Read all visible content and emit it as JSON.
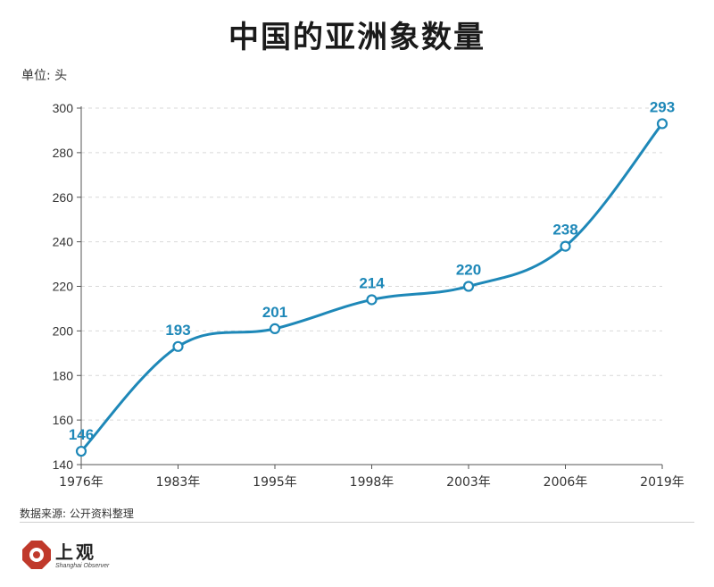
{
  "page": {
    "title": "中国的亚洲象数量",
    "unit_label": "单位: 头",
    "source": "数据来源: 公开资料整理",
    "brand": {
      "name": "上观",
      "subtitle": "Shanghai Observer"
    }
  },
  "chart_data": {
    "type": "line",
    "title": "中国的亚洲象数量",
    "ylabel": "单位: 头",
    "xlabel": "",
    "categories": [
      "1976年",
      "1983年",
      "1995年",
      "1998年",
      "2003年",
      "2006年",
      "2019年"
    ],
    "values": [
      146,
      193,
      201,
      214,
      220,
      238,
      293
    ],
    "data_labels": [
      "146",
      "193",
      "201",
      "214",
      "220",
      "238",
      "293"
    ],
    "y_ticks": [
      "140",
      "160",
      "180",
      "200",
      "220",
      "240",
      "260",
      "280",
      "300"
    ],
    "ylim": [
      140,
      300
    ],
    "grid": true,
    "smooth": true,
    "line_color": "#1e88b8",
    "label_color": "#1e88b8",
    "grid_color": "#d9d9d9"
  }
}
